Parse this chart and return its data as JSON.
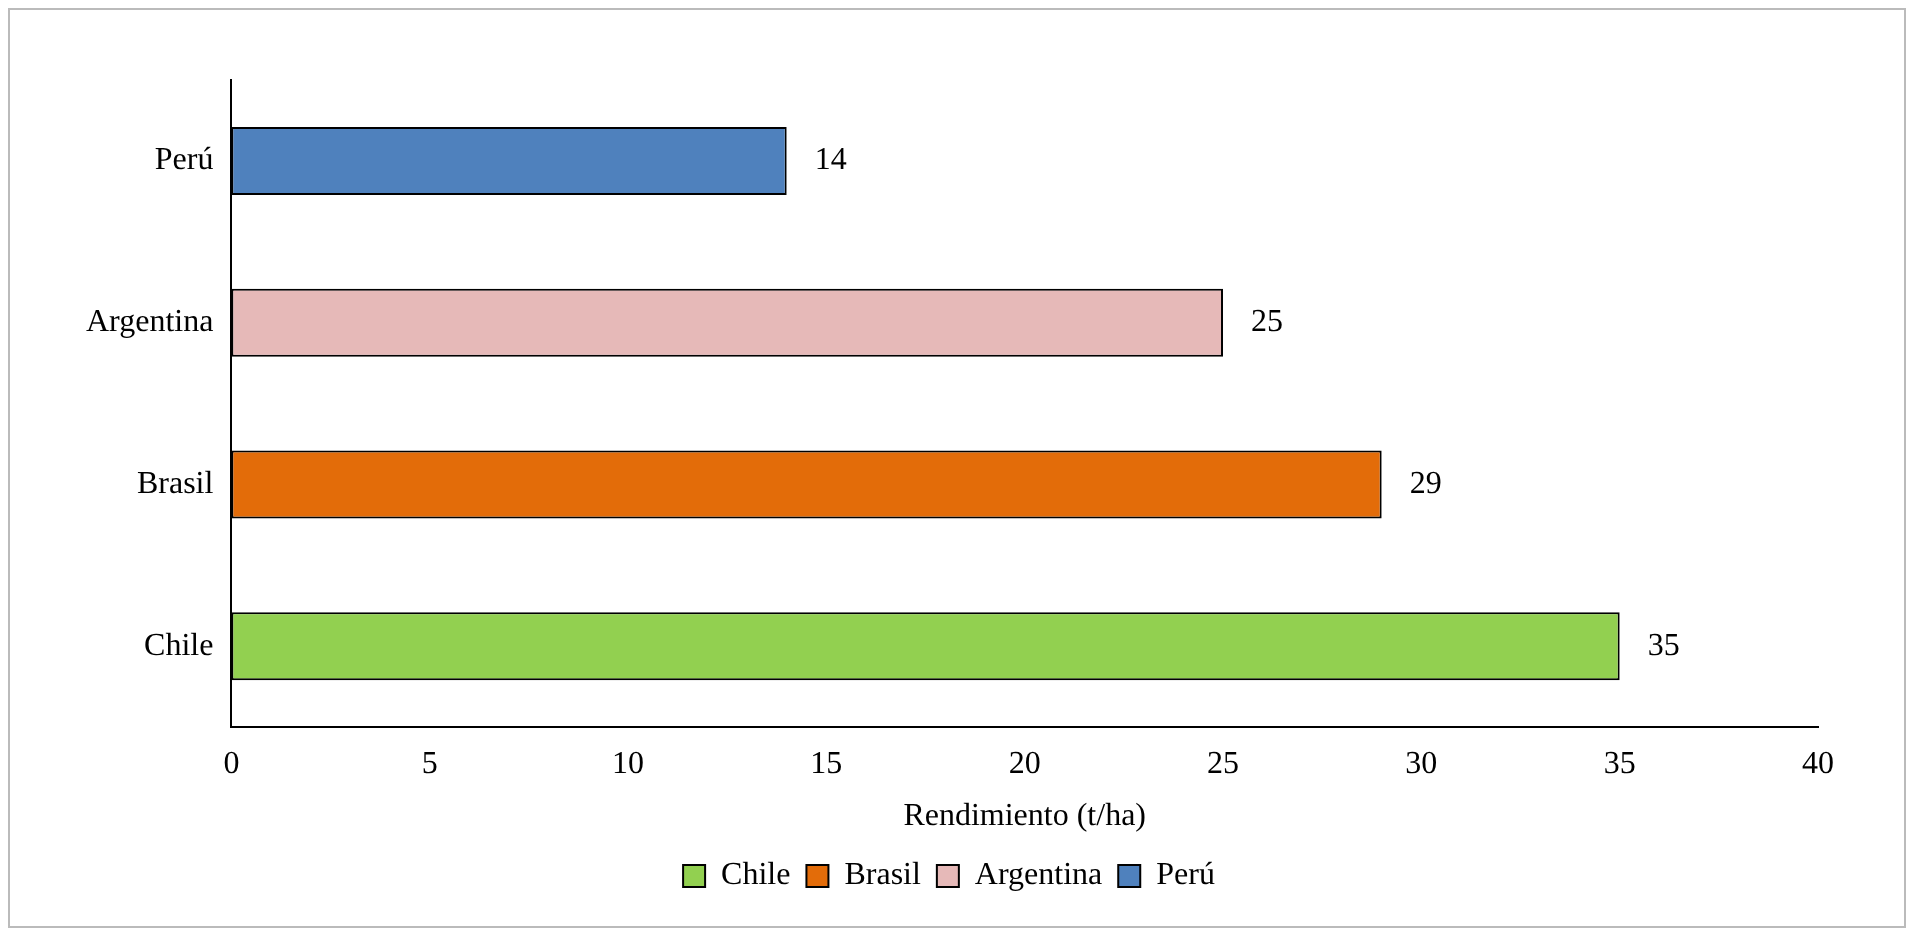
{
  "chart_data": {
    "type": "bar",
    "orientation": "horizontal",
    "stacked": true,
    "xlabel": "Rendimiento (t/ha)",
    "categories": [
      "Perú",
      "Argentina",
      "Brasil",
      "Chile"
    ],
    "series": [
      {
        "name": "Chile",
        "color": "#92d050",
        "values": [
          null,
          null,
          null,
          35
        ]
      },
      {
        "name": "Brasil",
        "color": "#e36c09",
        "values": [
          null,
          null,
          29,
          null
        ]
      },
      {
        "name": "Argentina",
        "color": "#e6b9b8",
        "values": [
          null,
          25,
          null,
          null
        ]
      },
      {
        "name": "Perú",
        "color": "#4f81bd",
        "values": [
          14,
          null,
          null,
          null
        ]
      }
    ],
    "xlim": [
      0,
      40
    ],
    "xticks": [
      0,
      5,
      10,
      15,
      20,
      25,
      30,
      35,
      40
    ],
    "grid": false,
    "legend": "bottom",
    "data_labels": true
  }
}
